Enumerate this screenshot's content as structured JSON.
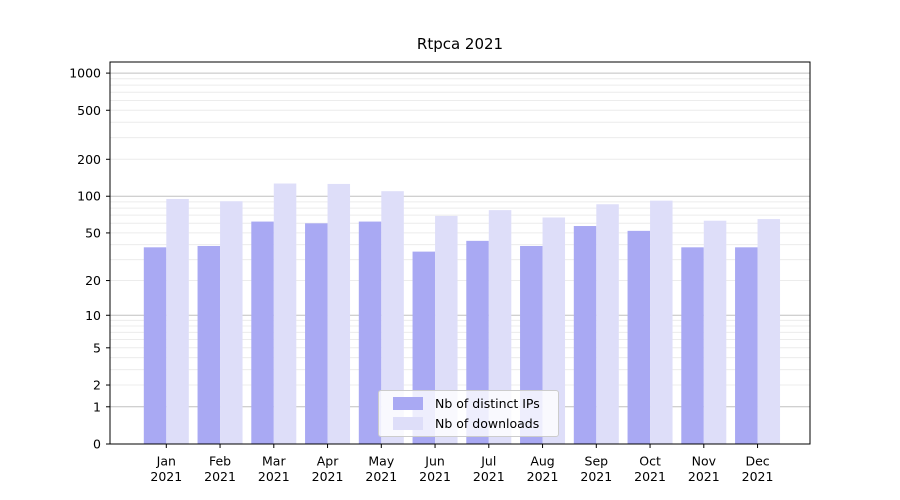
{
  "title": "Rtpca 2021",
  "chart_data": {
    "type": "bar",
    "title": "Rtpca 2021",
    "categories": [
      "Jan 2021",
      "Feb 2021",
      "Mar 2021",
      "Apr 2021",
      "May 2021",
      "Jun 2021",
      "Jul 2021",
      "Aug 2021",
      "Sep 2021",
      "Oct 2021",
      "Nov 2021",
      "Dec 2021"
    ],
    "series": [
      {
        "name": "Nb of distinct IPs",
        "color": "#a9a9f3",
        "values": [
          38,
          39,
          62,
          60,
          62,
          35,
          43,
          39,
          57,
          52,
          38,
          38
        ]
      },
      {
        "name": "Nb of downloads",
        "color": "#dedef9",
        "values": [
          95,
          91,
          127,
          126,
          110,
          69,
          77,
          67,
          86,
          92,
          63,
          65
        ]
      }
    ],
    "xlabel": "",
    "ylabel": "",
    "yscale": "log1p",
    "ylim": [
      0,
      1230
    ],
    "y_ticks": [
      0,
      1,
      2,
      5,
      10,
      20,
      50,
      100,
      200,
      500,
      1000
    ],
    "y_gridlines_major": [
      1,
      10,
      100,
      1000
    ],
    "y_gridlines_minor": [
      2,
      3,
      4,
      5,
      6,
      7,
      8,
      9,
      20,
      30,
      40,
      50,
      60,
      70,
      80,
      90,
      200,
      300,
      400,
      500,
      600,
      700,
      800,
      900
    ],
    "grid": "both",
    "legend_position": "inside-bottom-center"
  },
  "colors": {
    "axis": "#000000",
    "grid_major": "#c0c0c0",
    "grid_minor": "#ececec",
    "tick_label": "#000000",
    "legend_border": "#cccccc"
  }
}
